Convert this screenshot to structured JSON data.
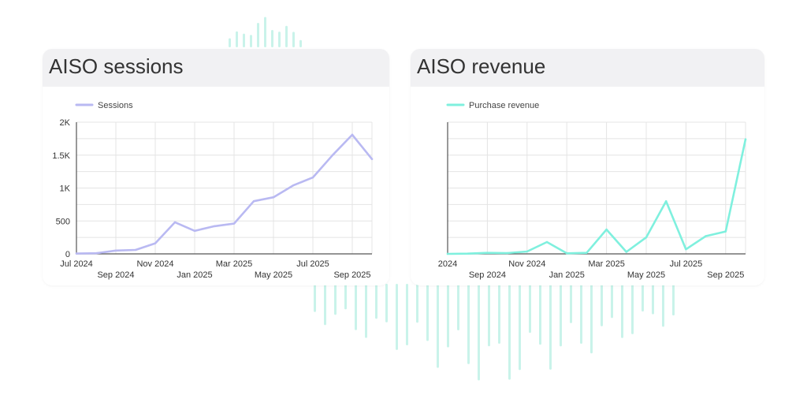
{
  "theme": {
    "sessions_color": "#b9b9f2",
    "revenue_color": "#7ff0de",
    "grid_color": "#e4e4e4",
    "axis_color": "#555555",
    "deco_color": "#c9f3ea"
  },
  "chart_data": [
    {
      "type": "line",
      "title": "AISO sessions",
      "x": [
        "Jul 2024",
        "Aug 2024",
        "Sep 2024",
        "Oct 2024",
        "Nov 2024",
        "Dec 2024",
        "Jan 2025",
        "Feb 2025",
        "Mar 2025",
        "Apr 2025",
        "May 2025",
        "Jun 2025",
        "Jul 2025",
        "Aug 2025",
        "Sep 2025",
        "Oct 2025"
      ],
      "series": [
        {
          "name": "Sessions",
          "values": [
            5,
            10,
            50,
            60,
            160,
            480,
            350,
            420,
            460,
            800,
            860,
            1040,
            1160,
            1500,
            1810,
            1440
          ]
        }
      ],
      "x_tick_labels": [
        "Jul 2024",
        "Sep 2024",
        "Nov 2024",
        "Jan 2025",
        "Mar 2025",
        "May 2025",
        "Jul 2025",
        "Sep 2025"
      ],
      "y_tick_labels": [
        "0",
        "500",
        "1K",
        "1.5K",
        "2K"
      ],
      "ylim": [
        0,
        2000
      ],
      "grid": true,
      "legend_position": "top-left"
    },
    {
      "type": "line",
      "title": "AISO revenue",
      "x": [
        "Jul 2024",
        "Aug 2024",
        "Sep 2024",
        "Oct 2024",
        "Nov 2024",
        "Dec 2024",
        "Jan 2025",
        "Feb 2025",
        "Mar 2025",
        "Apr 2025",
        "May 2025",
        "Jun 2025",
        "Jul 2025",
        "Aug 2025",
        "Sep 2025",
        "Oct 2025"
      ],
      "series": [
        {
          "name": "Purchase revenue",
          "values": [
            0.0,
            0.2,
            0.8,
            0.6,
            1.8,
            9.0,
            0.4,
            0.8,
            18.5,
            1.5,
            12.5,
            40.0,
            3.5,
            13.5,
            17.0,
            87.0
          ]
        }
      ],
      "x_tick_labels": [
        "2024",
        "Sep 2024",
        "Nov 2024",
        "Jan 2025",
        "Mar 2025",
        "May 2025",
        "Jul 2025",
        "Sep 2025"
      ],
      "y_tick_labels": [],
      "ylim": [
        0,
        100
      ],
      "grid": true,
      "legend_position": "top-left"
    }
  ]
}
